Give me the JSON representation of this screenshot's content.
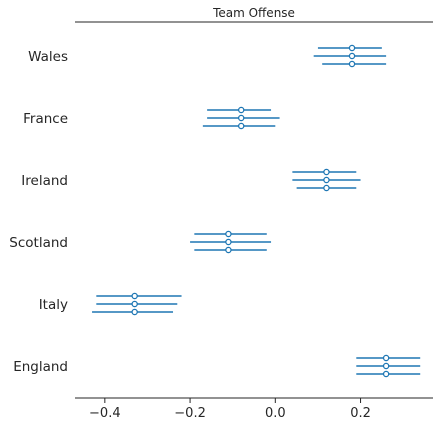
{
  "chart_data": {
    "type": "forest",
    "title": "Team Offense",
    "xlabel": "",
    "ylabel": "",
    "xlim": [
      -0.47,
      0.37
    ],
    "x_ticks": [
      -0.4,
      -0.2,
      0.0,
      0.2
    ],
    "x_tick_labels": [
      "−0.4",
      "−0.2",
      "0.0",
      "0.2"
    ],
    "grid": false,
    "color": "#1f77b4",
    "categories": [
      "Wales",
      "France",
      "Ireland",
      "Scotland",
      "Italy",
      "England"
    ],
    "intervals": [
      {
        "category": "Wales",
        "chains": [
          {
            "mean": 0.18,
            "low": 0.1,
            "high": 0.25
          },
          {
            "mean": 0.18,
            "low": 0.09,
            "high": 0.26
          },
          {
            "mean": 0.18,
            "low": 0.11,
            "high": 0.26
          }
        ]
      },
      {
        "category": "France",
        "chains": [
          {
            "mean": -0.08,
            "low": -0.16,
            "high": -0.01
          },
          {
            "mean": -0.08,
            "low": -0.16,
            "high": 0.01
          },
          {
            "mean": -0.08,
            "low": -0.17,
            "high": 0.0
          }
        ]
      },
      {
        "category": "Ireland",
        "chains": [
          {
            "mean": 0.12,
            "low": 0.04,
            "high": 0.19
          },
          {
            "mean": 0.12,
            "low": 0.04,
            "high": 0.2
          },
          {
            "mean": 0.12,
            "low": 0.05,
            "high": 0.19
          }
        ]
      },
      {
        "category": "Scotland",
        "chains": [
          {
            "mean": -0.11,
            "low": -0.19,
            "high": -0.02
          },
          {
            "mean": -0.11,
            "low": -0.2,
            "high": -0.01
          },
          {
            "mean": -0.11,
            "low": -0.19,
            "high": -0.02
          }
        ]
      },
      {
        "category": "Italy",
        "chains": [
          {
            "mean": -0.33,
            "low": -0.42,
            "high": -0.22
          },
          {
            "mean": -0.33,
            "low": -0.42,
            "high": -0.23
          },
          {
            "mean": -0.33,
            "low": -0.43,
            "high": -0.24
          }
        ]
      },
      {
        "category": "England",
        "chains": [
          {
            "mean": 0.26,
            "low": 0.19,
            "high": 0.34
          },
          {
            "mean": 0.26,
            "low": 0.19,
            "high": 0.34
          },
          {
            "mean": 0.26,
            "low": 0.19,
            "high": 0.34
          }
        ]
      }
    ]
  }
}
